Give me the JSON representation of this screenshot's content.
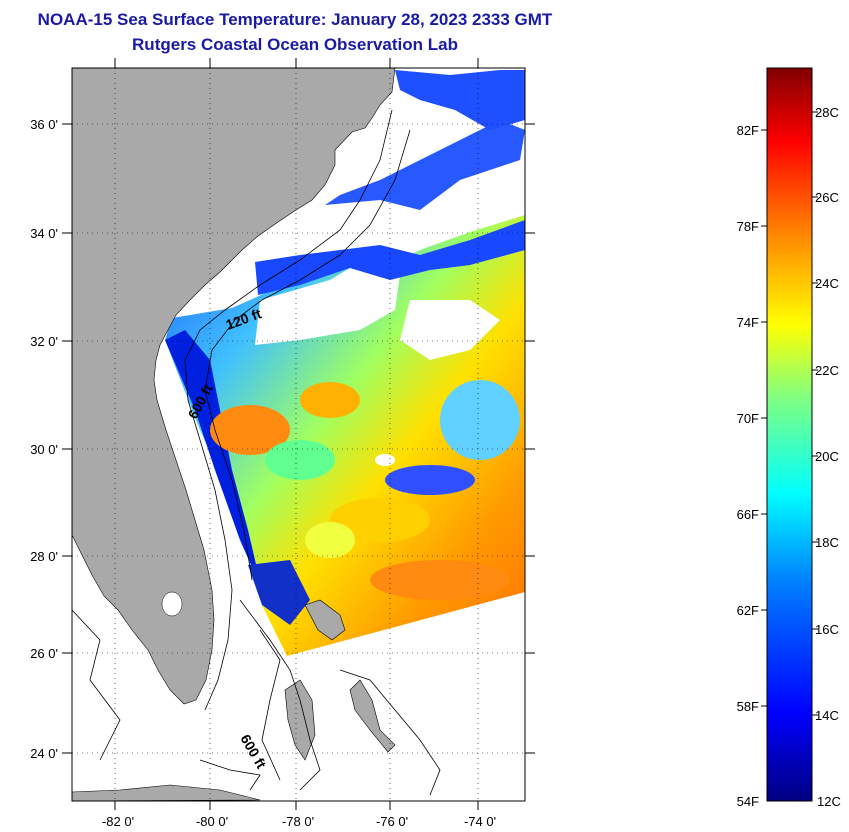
{
  "header": {
    "title": "NOAA-15 Sea Surface Temperature:  January 28, 2023 2333 GMT",
    "subtitle": "Rutgers Coastal Ocean Observation Lab"
  },
  "map": {
    "lat_labels": [
      "36 0'",
      "34 0'",
      "32 0'",
      "30 0'",
      "28 0'",
      "26 0'",
      "24 0'"
    ],
    "lon_labels": [
      "-82 0'",
      "-80 0'",
      "-78 0'",
      "-76 0'",
      "-74 0'"
    ],
    "contour_labels": [
      "120 ft",
      "600 ft",
      "600 ft"
    ],
    "colors": {
      "land": "#a9a9a9",
      "water_nodata": "#ffffff",
      "grid": "#000000"
    }
  },
  "colorbar": {
    "fahrenheit_labels": [
      "82F",
      "78F",
      "74F",
      "70F",
      "66F",
      "62F",
      "58F",
      "54F"
    ],
    "celsius_labels": [
      "28C",
      "26C",
      "24C",
      "22C",
      "20C",
      "18C",
      "16C",
      "14C",
      "12C"
    ],
    "range_c": [
      12,
      29
    ],
    "palette": [
      "#000080",
      "#0000ff",
      "#0080ff",
      "#00ffff",
      "#80ff80",
      "#ffff00",
      "#ff8000",
      "#ff0000",
      "#800000"
    ]
  }
}
